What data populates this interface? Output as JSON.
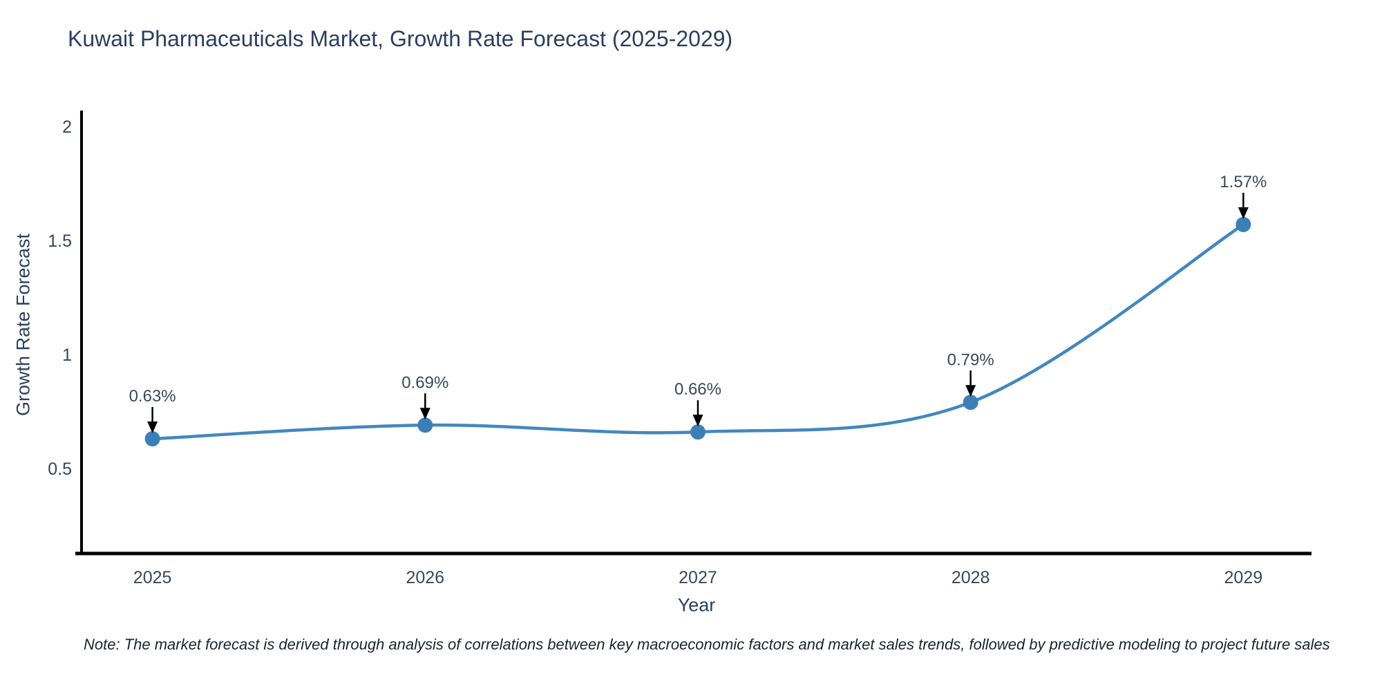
{
  "title": "Kuwait Pharmaceuticals Market, Growth Rate Forecast (2025-2029)",
  "note": "Note: The market forecast is derived through analysis of correlations between key macroeconomic factors and market sales trends, followed by predictive modeling to project future sales",
  "colors": {
    "title": "#2a3f5f",
    "axis_title": "#2a3f5f",
    "tick": "#3c4658",
    "annotation": "#3c4658",
    "line": "#4387bf",
    "marker": "#3c7fb7",
    "arrow": "#000000",
    "axis_line": "#000000",
    "note": "#1c2330",
    "background": "#ffffff"
  },
  "chart_data": {
    "type": "line",
    "title": "Kuwait Pharmaceuticals Market, Growth Rate Forecast (2025-2029)",
    "xlabel": "Year",
    "ylabel": "Growth Rate Forecast",
    "x": [
      2025,
      2026,
      2027,
      2028,
      2029
    ],
    "values": [
      0.63,
      0.69,
      0.66,
      0.79,
      1.57
    ],
    "point_labels": [
      "0.63%",
      "0.69%",
      "0.66%",
      "0.79%",
      "1.57%"
    ],
    "series_name": "Growth Rate Forecast (%)",
    "xticks": [
      2025,
      2026,
      2027,
      2028,
      2029
    ],
    "yticks": [
      0.5,
      1,
      1.5,
      2
    ],
    "xlim": [
      2024.74,
      2029.25
    ],
    "ylim": [
      0.13,
      2.07
    ],
    "line_shape": "spline",
    "markers": true,
    "grid": false,
    "legend": false
  }
}
